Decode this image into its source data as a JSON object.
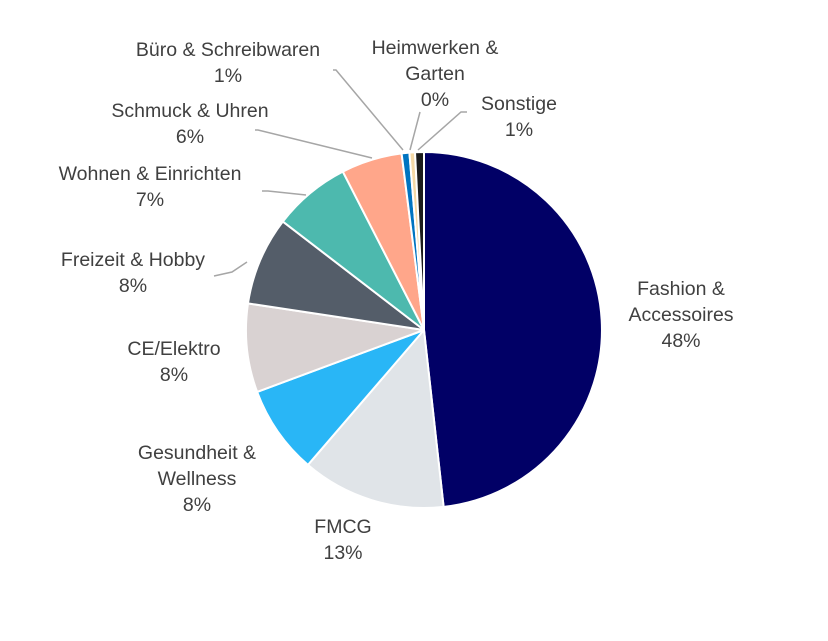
{
  "chart_data": {
    "type": "pie",
    "title": "",
    "slices": [
      {
        "label_lines": [
          "Fashion &",
          "Accessoires"
        ],
        "pct_label": "48%",
        "value": 48,
        "color": "#010066"
      },
      {
        "label_lines": [
          "FMCG"
        ],
        "pct_label": "13%",
        "value": 13,
        "color": "#E0E4E8"
      },
      {
        "label_lines": [
          "Gesundheit &",
          "Wellness"
        ],
        "pct_label": "8%",
        "value": 8,
        "color": "#29B6F6"
      },
      {
        "label_lines": [
          "CE/Elektro"
        ],
        "pct_label": "8%",
        "value": 8,
        "color": "#D9D2D2"
      },
      {
        "label_lines": [
          "Freizeit & Hobby"
        ],
        "pct_label": "8%",
        "value": 8,
        "color": "#545D69"
      },
      {
        "label_lines": [
          "Wohnen & Einrichten"
        ],
        "pct_label": "7%",
        "value": 7,
        "color": "#4DB9AE"
      },
      {
        "label_lines": [
          "Schmuck & Uhren"
        ],
        "pct_label": "6%",
        "value": 5.5,
        "color": "#FFA68A"
      },
      {
        "label_lines": [
          "Büro & Schreibwaren"
        ],
        "pct_label": "1%",
        "value": 0.7,
        "color": "#0074C1"
      },
      {
        "label_lines": [
          "Heimwerken &",
          "Garten"
        ],
        "pct_label": "0%",
        "value": 0.5,
        "color": "#F5D9A6"
      },
      {
        "label_lines": [
          "Sonstige"
        ],
        "pct_label": "1%",
        "value": 0.8,
        "color": "#1B1B1B"
      }
    ],
    "legend": "none",
    "data_labels": "outside with leader lines"
  }
}
